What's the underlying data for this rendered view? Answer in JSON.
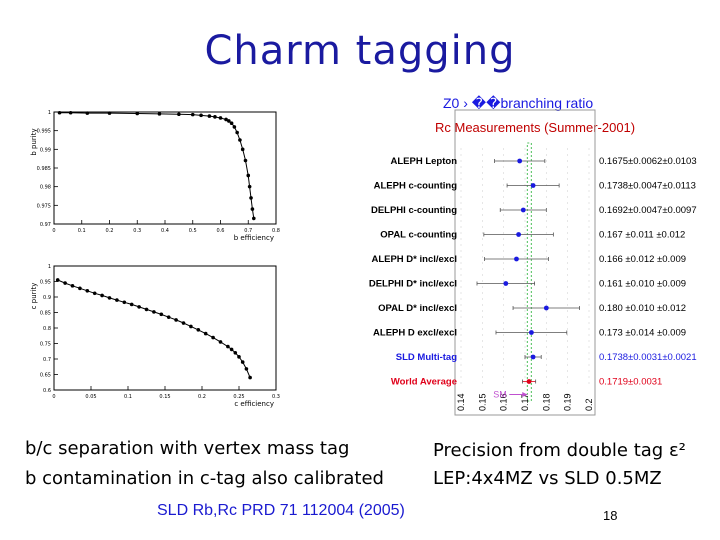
{
  "slide": {
    "title": "Charm tagging",
    "note_left_1": "b/c separation with vertex mass tag",
    "note_left_2": "b contamination in c-tag also calibrated",
    "note_right_1": "Precision from double tag ε²",
    "note_right_2": "LEP:4x4MZ  vs  SLD 0.5MZ",
    "citation": "SLD Rb,Rc PRD 71 112004 (2005)",
    "page_number": "18"
  },
  "chart_data": [
    {
      "type": "scatter",
      "ylabel": "b purity",
      "xlabel": "b efficiency",
      "xticks": [
        "0",
        "0.1",
        "0.2",
        "0.3",
        "0.4",
        "0.5",
        "0.6",
        "0.7",
        "0.8"
      ],
      "yticks": [
        "0.97",
        "0.975",
        "0.98",
        "0.985",
        "0.99",
        "0.995",
        "1"
      ],
      "xlim": [
        0,
        0.8
      ],
      "ylim": [
        0.97,
        1.0
      ],
      "x": [
        0.02,
        0.06,
        0.12,
        0.2,
        0.3,
        0.38,
        0.45,
        0.5,
        0.53,
        0.56,
        0.58,
        0.6,
        0.62,
        0.63,
        0.64,
        0.65,
        0.66,
        0.67,
        0.68,
        0.69,
        0.7,
        0.705,
        0.71,
        0.715,
        0.72
      ],
      "y": [
        0.9998,
        0.9998,
        0.9997,
        0.9997,
        0.9996,
        0.9995,
        0.9994,
        0.9993,
        0.9991,
        0.9989,
        0.9987,
        0.9984,
        0.998,
        0.9976,
        0.997,
        0.996,
        0.9945,
        0.9925,
        0.99,
        0.987,
        0.983,
        0.98,
        0.977,
        0.974,
        0.9715
      ]
    },
    {
      "type": "scatter",
      "ylabel": "c purity",
      "xlabel": "c efficiency",
      "xticks": [
        "0",
        "0.05",
        "0.1",
        "0.15",
        "0.2",
        "0.25",
        "0.3"
      ],
      "yticks": [
        "0.6",
        "0.65",
        "0.7",
        "0.75",
        "0.8",
        "0.85",
        "0.9",
        "0.95",
        "1"
      ],
      "xlim": [
        0,
        0.3
      ],
      "ylim": [
        0.6,
        1.0
      ],
      "x": [
        0.005,
        0.015,
        0.025,
        0.035,
        0.045,
        0.055,
        0.065,
        0.075,
        0.085,
        0.095,
        0.105,
        0.115,
        0.125,
        0.135,
        0.145,
        0.155,
        0.165,
        0.175,
        0.185,
        0.195,
        0.205,
        0.215,
        0.225,
        0.235,
        0.24,
        0.245,
        0.25,
        0.255,
        0.26,
        0.265
      ],
      "y": [
        0.955,
        0.945,
        0.936,
        0.928,
        0.92,
        0.912,
        0.905,
        0.897,
        0.89,
        0.883,
        0.876,
        0.868,
        0.86,
        0.852,
        0.844,
        0.835,
        0.826,
        0.816,
        0.805,
        0.794,
        0.782,
        0.769,
        0.755,
        0.74,
        0.731,
        0.72,
        0.707,
        0.69,
        0.668,
        0.64
      ]
    },
    {
      "type": "scatter",
      "title": "Z0 › ��branching ratio",
      "subtitle": "Rc Measurements (Summer-2001)",
      "xlim": [
        0.14,
        0.2
      ],
      "xticks": [
        "0.14",
        "0.15",
        "0.16",
        "0.17",
        "0.18",
        "0.19",
        "0.2"
      ],
      "sm_label": "SM",
      "sm_value": 0.172,
      "colors": {
        "normal": "#000000",
        "sld": "#1a1ae0",
        "average": "#e0001a",
        "sm_band": "#20b030",
        "sm_arrow": "#c050d0",
        "point": "#1a1ae0"
      },
      "measurements": [
        {
          "label": "ALEPH Lepton",
          "value": 0.1675,
          "err": 0.0118,
          "text": "0.1675±0.0062±0.0103",
          "kind": "normal"
        },
        {
          "label": "ALEPH c-counting",
          "value": 0.1738,
          "err": 0.0122,
          "text": "0.1738±0.0047±0.0113",
          "kind": "normal"
        },
        {
          "label": "DELPHI c-counting",
          "value": 0.1692,
          "err": 0.0108,
          "text": "0.1692±0.0047±0.0097",
          "kind": "normal"
        },
        {
          "label": "OPAL c-counting",
          "value": 0.167,
          "err": 0.0163,
          "text": "0.167  ±0.011  ±0.012",
          "kind": "normal"
        },
        {
          "label": "ALEPH D* incl/excl",
          "value": 0.166,
          "err": 0.015,
          "text": "0.166  ±0.012  ±0.009",
          "kind": "normal"
        },
        {
          "label": "DELPHI D* incl/excl",
          "value": 0.161,
          "err": 0.0135,
          "text": "0.161  ±0.010  ±0.009",
          "kind": "normal"
        },
        {
          "label": "OPAL D* incl/excl",
          "value": 0.18,
          "err": 0.0156,
          "text": "0.180  ±0.010  ±0.012",
          "kind": "normal"
        },
        {
          "label": "ALEPH D excl/excl",
          "value": 0.173,
          "err": 0.0166,
          "text": "0.173  ±0.014  ±0.009",
          "kind": "normal"
        },
        {
          "label": "SLD Multi-tag",
          "value": 0.1738,
          "err": 0.0038,
          "text": "0.1738±0.0031±0.0021",
          "kind": "sld"
        },
        {
          "label": "World Average",
          "value": 0.1719,
          "err": 0.0031,
          "text": "0.1719±0.0031",
          "kind": "average"
        }
      ]
    }
  ]
}
